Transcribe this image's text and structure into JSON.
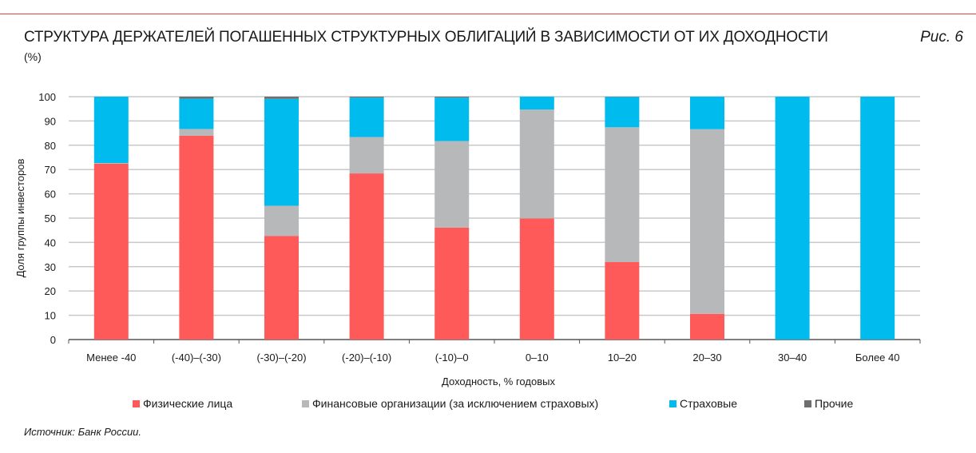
{
  "title": "СТРУКТУРА ДЕРЖАТЕЛЕЙ ПОГАШЕННЫХ СТРУКТУРНЫХ ОБЛИГАЦИЙ В ЗАВИСИМОСТИ ОТ ИХ ДОХОДНОСТИ",
  "figure_label": "Рис. 6",
  "unit": "(%)",
  "source": "Источник: Банк России.",
  "chart_data": {
    "type": "bar",
    "stacked": true,
    "xlabel": "Доходность, % годовых",
    "ylabel": "Доля группы инвесторов",
    "ylim": [
      0,
      100
    ],
    "yticks": [
      0,
      10,
      20,
      30,
      40,
      50,
      60,
      70,
      80,
      90,
      100
    ],
    "grid": true,
    "legend_position": "bottom",
    "categories": [
      "Менее -40",
      "(-40)–(-30)",
      "(-30)–(-20)",
      "(-20)–(-10)",
      "(-10)–0",
      "0–10",
      "10–20",
      "20–30",
      "30–40",
      "Более 40"
    ],
    "series": [
      {
        "name": "Физические лица",
        "color": "#ff5a5a",
        "values": [
          72.4,
          83.9,
          42.7,
          68.4,
          46.1,
          49.9,
          31.9,
          10.6,
          0,
          0
        ]
      },
      {
        "name": "Финансовые организации (за исключением страховых)",
        "color": "#b7b8ba",
        "values": [
          0.3,
          2.8,
          12.4,
          15.0,
          35.6,
          44.8,
          55.5,
          76.0,
          0,
          0
        ]
      },
      {
        "name": "Страховые",
        "color": "#00bbee",
        "values": [
          27.3,
          12.5,
          44.0,
          16.2,
          17.9,
          5.3,
          12.5,
          13.4,
          100,
          100
        ]
      },
      {
        "name": "Прочие",
        "color": "#6d6e70",
        "values": [
          0,
          0.8,
          0.9,
          0.4,
          0.4,
          0,
          0.1,
          0,
          0,
          0
        ]
      }
    ]
  }
}
